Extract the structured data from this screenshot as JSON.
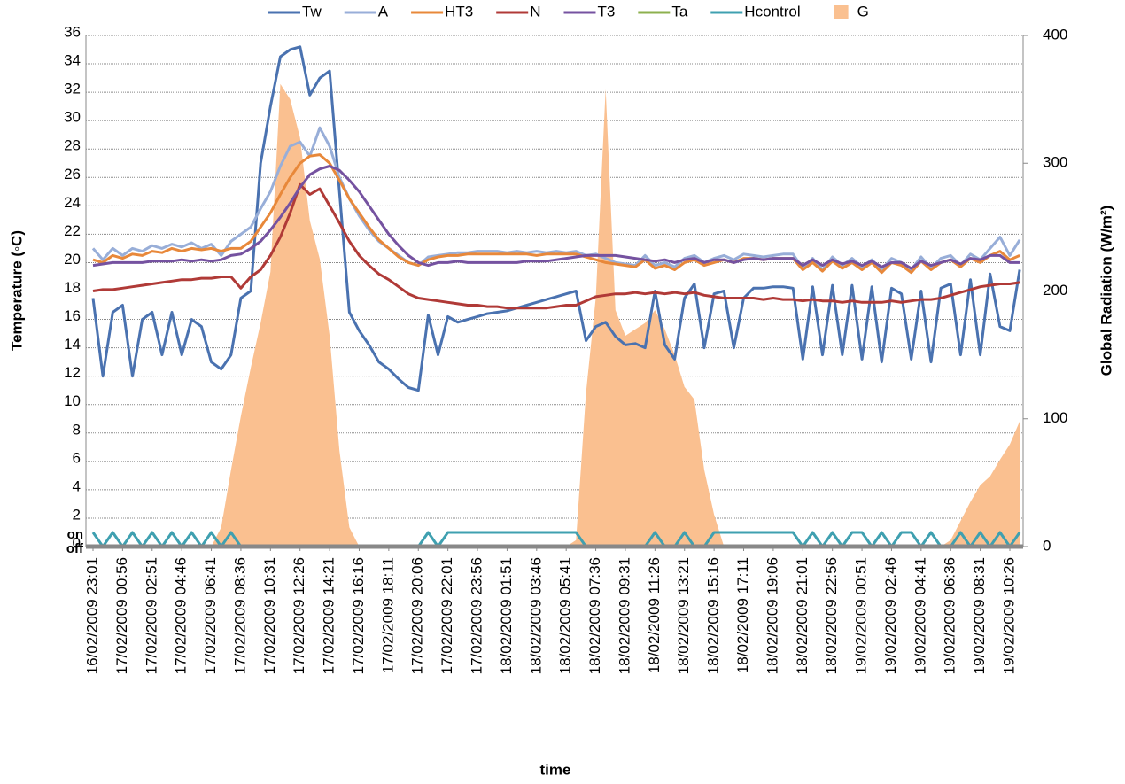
{
  "chart_data": {
    "type": "line",
    "y_label": "Temperature (◦C)",
    "y2_label": "Global Radiation (W/m²)",
    "x_label": "time",
    "categories": [
      "16/02/2009 23:01",
      null,
      null,
      "17/02/2009 00:56",
      null,
      null,
      "17/02/2009 02:51",
      null,
      null,
      "17/02/2009 04:46",
      null,
      null,
      "17/02/2009 06:41",
      null,
      null,
      "17/02/2009 08:36",
      null,
      null,
      "17/02/2009 10:31",
      null,
      null,
      "17/02/2009 12:26",
      null,
      null,
      "17/02/2009 14:21",
      null,
      null,
      "17/02/2009 16:16",
      null,
      null,
      "17/02/2009 18:11",
      null,
      null,
      "17/02/2009 20:06",
      null,
      null,
      "17/02/2009 22:01",
      null,
      null,
      "17/02/2009 23:56",
      null,
      null,
      "18/02/2009 01:51",
      null,
      null,
      "18/02/2009 03:46",
      null,
      null,
      "18/02/2009 05:41",
      null,
      null,
      "18/02/2009 07:36",
      null,
      null,
      "18/02/2009 09:31",
      null,
      null,
      "18/02/2009 11:26",
      null,
      null,
      "18/02/2009 13:21",
      null,
      null,
      "18/02/2009 15:16",
      null,
      null,
      "18/02/2009 17:11",
      null,
      null,
      "18/02/2009 19:06",
      null,
      null,
      "18/02/2009 21:01",
      null,
      null,
      "18/02/2009 22:56",
      null,
      null,
      "19/02/2009 00:51",
      null,
      null,
      "19/02/2009 02:46",
      null,
      null,
      "19/02/2009 04:41",
      null,
      null,
      "19/02/2009 06:36",
      null,
      null,
      "19/02/2009 08:31",
      null,
      null,
      "19/02/2009 10:26",
      null
    ],
    "ylim": [
      0,
      36
    ],
    "yticks": [
      0,
      2,
      4,
      6,
      8,
      10,
      12,
      14,
      16,
      18,
      20,
      22,
      24,
      26,
      28,
      30,
      32,
      34,
      36
    ],
    "y2lim": [
      0,
      400
    ],
    "y2ticks": [
      0,
      100,
      200,
      300,
      400
    ],
    "state_labels": [
      {
        "value": 1,
        "label": "on"
      },
      {
        "value": 0,
        "label": "off"
      }
    ],
    "grid": true,
    "legend": "top",
    "series": [
      {
        "name": "G",
        "type": "area",
        "axis": "y2",
        "color": "#fac090",
        "values": [
          0,
          0,
          0,
          0,
          0,
          0,
          0,
          0,
          0,
          0,
          0,
          0,
          0,
          15,
          60,
          102,
          140,
          175,
          215,
          362,
          350,
          320,
          255,
          225,
          165,
          75,
          15,
          0,
          0,
          0,
          0,
          0,
          0,
          0,
          0,
          0,
          0,
          0,
          0,
          0,
          0,
          0,
          0,
          0,
          0,
          0,
          0,
          0,
          0,
          5,
          120,
          195,
          358,
          185,
          165,
          170,
          175,
          185,
          170,
          150,
          125,
          115,
          60,
          25,
          0,
          0,
          0,
          0,
          0,
          0,
          0,
          0,
          0,
          0,
          0,
          0,
          0,
          0,
          0,
          0,
          0,
          0,
          0,
          0,
          0,
          0,
          0,
          5,
          20,
          35,
          48,
          55,
          68,
          80,
          98
        ]
      },
      {
        "name": "Tw",
        "color": "#4a72b0",
        "values": [
          17.5,
          12,
          16.5,
          17,
          12,
          16,
          16.5,
          13.5,
          16.5,
          13.5,
          16,
          15.5,
          13,
          12.5,
          13.5,
          17.5,
          18,
          27,
          31,
          34.5,
          35,
          35.2,
          31.8,
          33,
          33.5,
          25,
          16.5,
          15.2,
          14.2,
          13,
          12.5,
          11.8,
          11.2,
          11,
          16.3,
          13.5,
          16.2,
          15.8,
          16,
          16.2,
          16.4,
          16.5,
          16.6,
          16.8,
          17,
          17.2,
          17.4,
          17.6,
          17.8,
          18,
          14.5,
          15.5,
          15.8,
          14.8,
          14.2,
          14.3,
          14,
          18,
          14.2,
          13.2,
          17.5,
          18.5,
          14,
          17.8,
          18,
          14,
          17.5,
          18.2,
          18.2,
          18.3,
          18.3,
          18.2,
          13.2,
          18.3,
          13.5,
          18.4,
          13.5,
          18.4,
          13.2,
          18.3,
          13,
          18.2,
          17.8,
          13.2,
          18,
          13,
          18.2,
          18.5,
          13.5,
          18.8,
          13.5,
          19.2,
          15.5,
          15.2,
          19.5
        ]
      },
      {
        "name": "A",
        "color": "#98aed8",
        "values": [
          21,
          20.2,
          21,
          20.5,
          21,
          20.8,
          21.2,
          21,
          21.3,
          21.1,
          21.4,
          21,
          21.3,
          20.5,
          21.5,
          22,
          22.5,
          23.8,
          25,
          26.8,
          28.2,
          28.5,
          27.5,
          29.5,
          28.2,
          26,
          24.5,
          23.3,
          22.3,
          21.5,
          21,
          20.5,
          20,
          19.8,
          20.4,
          20.5,
          20.6,
          20.7,
          20.7,
          20.8,
          20.8,
          20.8,
          20.7,
          20.8,
          20.7,
          20.8,
          20.7,
          20.8,
          20.7,
          20.8,
          20.5,
          20.6,
          20.3,
          20,
          19.9,
          19.8,
          20.5,
          19.8,
          20,
          19.7,
          20.3,
          20.5,
          20,
          20.3,
          20.5,
          20.2,
          20.6,
          20.5,
          20.4,
          20.5,
          20.6,
          20.6,
          19.6,
          20.3,
          19.5,
          20.4,
          19.8,
          20.3,
          19.7,
          20.2,
          19.5,
          20.3,
          20,
          19.5,
          20.4,
          19.6,
          20.3,
          20.5,
          19.8,
          20.6,
          20.2,
          21,
          21.8,
          20.5,
          21.6
        ]
      },
      {
        "name": "HT3",
        "color": "#e8883a",
        "values": [
          20.2,
          20,
          20.5,
          20.3,
          20.6,
          20.5,
          20.8,
          20.7,
          21,
          20.8,
          21,
          20.9,
          21,
          20.8,
          21,
          21,
          21.5,
          22.5,
          23.5,
          24.8,
          26,
          27,
          27.5,
          27.6,
          27,
          25.8,
          24.5,
          23.5,
          22.5,
          21.6,
          21,
          20.4,
          20,
          19.8,
          20.2,
          20.4,
          20.5,
          20.5,
          20.6,
          20.6,
          20.6,
          20.6,
          20.6,
          20.6,
          20.6,
          20.5,
          20.6,
          20.6,
          20.6,
          20.6,
          20.4,
          20.2,
          20,
          19.9,
          19.8,
          19.7,
          20.2,
          19.6,
          19.8,
          19.5,
          20,
          20.2,
          19.8,
          20,
          20.2,
          20,
          20.3,
          20.3,
          20.2,
          20.3,
          20.3,
          20.3,
          19.5,
          20,
          19.4,
          20.1,
          19.6,
          20,
          19.5,
          20,
          19.3,
          20,
          19.8,
          19.3,
          20.1,
          19.5,
          20,
          20.2,
          19.7,
          20.3,
          20,
          20.5,
          20.8,
          20.2,
          20.5
        ]
      },
      {
        "name": "N",
        "color": "#b03a37",
        "values": [
          18,
          18.1,
          18.1,
          18.2,
          18.3,
          18.4,
          18.5,
          18.6,
          18.7,
          18.8,
          18.8,
          18.9,
          18.9,
          19,
          19,
          18.2,
          19,
          19.5,
          20.5,
          21.8,
          23.5,
          25.5,
          24.8,
          25.2,
          24,
          22.8,
          21.5,
          20.5,
          19.8,
          19.2,
          18.8,
          18.3,
          17.8,
          17.5,
          17.4,
          17.3,
          17.2,
          17.1,
          17,
          17,
          16.9,
          16.9,
          16.8,
          16.8,
          16.8,
          16.8,
          16.8,
          16.9,
          17,
          17,
          17.3,
          17.6,
          17.7,
          17.8,
          17.8,
          17.9,
          17.8,
          17.9,
          17.8,
          17.9,
          17.8,
          17.9,
          17.7,
          17.6,
          17.5,
          17.5,
          17.5,
          17.5,
          17.4,
          17.5,
          17.4,
          17.4,
          17.3,
          17.4,
          17.3,
          17.3,
          17.2,
          17.3,
          17.2,
          17.2,
          17.2,
          17.3,
          17.2,
          17.3,
          17.4,
          17.4,
          17.5,
          17.7,
          17.9,
          18.1,
          18.3,
          18.4,
          18.5,
          18.5,
          18.6
        ]
      },
      {
        "name": "T3",
        "color": "#7552a0",
        "values": [
          19.8,
          19.9,
          20,
          20,
          20,
          20,
          20.1,
          20.1,
          20.1,
          20.2,
          20.1,
          20.2,
          20.1,
          20.2,
          20.5,
          20.6,
          21,
          21.5,
          22.3,
          23.2,
          24.2,
          25.3,
          26.2,
          26.6,
          26.8,
          26.5,
          25.8,
          25,
          24,
          23,
          22,
          21.2,
          20.5,
          20,
          19.8,
          20,
          20,
          20.1,
          20,
          20,
          20,
          20,
          20,
          20,
          20.1,
          20.1,
          20.1,
          20.2,
          20.3,
          20.4,
          20.5,
          20.5,
          20.5,
          20.5,
          20.4,
          20.3,
          20.2,
          20.1,
          20.2,
          20,
          20.2,
          20.3,
          20,
          20.2,
          20.2,
          20,
          20.2,
          20.3,
          20.2,
          20.3,
          20.3,
          20.3,
          19.8,
          20.2,
          19.8,
          20.2,
          19.9,
          20.1,
          19.8,
          20.1,
          19.7,
          20,
          20,
          19.6,
          20.1,
          19.8,
          20,
          20.2,
          19.9,
          20.3,
          20.2,
          20.5,
          20.5,
          20,
          20
        ]
      },
      {
        "name": "Ta",
        "color": "#8db04e",
        "values": [
          0,
          0,
          0,
          0,
          0,
          0,
          0,
          0,
          0,
          0,
          0,
          0,
          0,
          0,
          0,
          0,
          0,
          0,
          0,
          0,
          0,
          0,
          0,
          0,
          0,
          0,
          0,
          0,
          0,
          0,
          0,
          0,
          0,
          0,
          0,
          0,
          0,
          0,
          0,
          0,
          0,
          0,
          0,
          0,
          0,
          0,
          0,
          0,
          0,
          0,
          0,
          0,
          0,
          0,
          0,
          0,
          0,
          0,
          0,
          0,
          0,
          0,
          0,
          0,
          0,
          0,
          0,
          0,
          0,
          0,
          0,
          0,
          0,
          0,
          0,
          0,
          0,
          0,
          0,
          0,
          0,
          0,
          0,
          0,
          0,
          0,
          0,
          0,
          0,
          0,
          0,
          0,
          0,
          0,
          0
        ]
      },
      {
        "name": "Hcontrol",
        "color": "#3fa0b0",
        "values": [
          1,
          0,
          1,
          0,
          1,
          0,
          1,
          0,
          1,
          0,
          1,
          0,
          1,
          0,
          1,
          0,
          0,
          0,
          0,
          0,
          0,
          0,
          0,
          0,
          0,
          0,
          0,
          0,
          0,
          0,
          0,
          0,
          0,
          0,
          1,
          0,
          1,
          1,
          1,
          1,
          1,
          1,
          1,
          1,
          1,
          1,
          1,
          1,
          1,
          1,
          0,
          0,
          0,
          0,
          0,
          0,
          0,
          1,
          0,
          0,
          1,
          0,
          0,
          1,
          1,
          1,
          1,
          1,
          1,
          1,
          1,
          1,
          0,
          1,
          0,
          1,
          0,
          1,
          1,
          0,
          1,
          0,
          1,
          1,
          0,
          1,
          0,
          0,
          1,
          0,
          1,
          0,
          1,
          0,
          1
        ]
      }
    ],
    "legend_order": [
      1,
      2,
      3,
      4,
      5,
      6,
      7,
      0
    ]
  }
}
